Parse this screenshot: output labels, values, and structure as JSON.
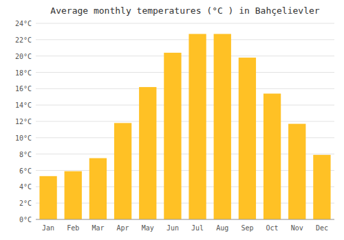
{
  "chart_data": {
    "type": "bar",
    "title": "Average monthly temperatures (°C ) in Bahçelievler",
    "categories": [
      "Jan",
      "Feb",
      "Mar",
      "Apr",
      "May",
      "Jun",
      "Jul",
      "Aug",
      "Sep",
      "Oct",
      "Nov",
      "Dec"
    ],
    "values": [
      5.3,
      5.9,
      7.5,
      11.8,
      16.2,
      20.4,
      22.7,
      22.7,
      19.8,
      15.4,
      11.7,
      7.9
    ],
    "color": "#FFC125",
    "ylim": [
      0,
      24
    ],
    "yticks": [
      {
        "value": 0,
        "label": "0°C"
      },
      {
        "value": 2,
        "label": "2°C"
      },
      {
        "value": 4,
        "label": "4°C"
      },
      {
        "value": 6,
        "label": "6°C"
      },
      {
        "value": 8,
        "label": "8°C"
      },
      {
        "value": 10,
        "label": "10°C"
      },
      {
        "value": 12,
        "label": "12°C"
      },
      {
        "value": 14,
        "label": "14°C"
      },
      {
        "value": 16,
        "label": "16°C"
      },
      {
        "value": 18,
        "label": "18°C"
      },
      {
        "value": 20,
        "label": "20°C"
      },
      {
        "value": 22,
        "label": "22°C"
      },
      {
        "value": 24,
        "label": "24°C"
      }
    ],
    "grid": true
  }
}
